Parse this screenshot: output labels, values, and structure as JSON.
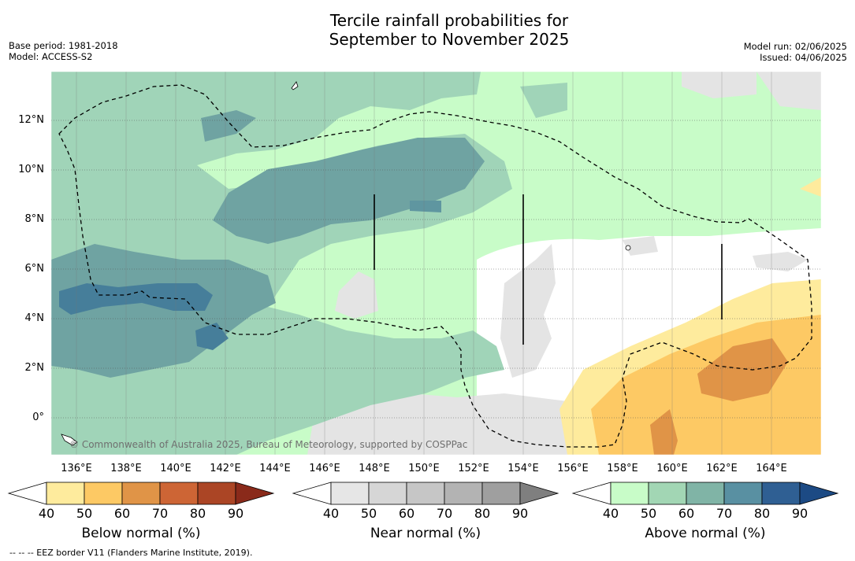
{
  "title_line1": "Tercile rainfall probabilities for",
  "title_line2": "September to November 2025",
  "base_period": "Base period: 1981-2018",
  "model": "Model: ACCESS-S2",
  "model_run": "Model run: 02/06/2025",
  "issued": "Issued: 04/06/2025",
  "credit": "© Commonwealth of Australia 2025, Bureau of Meteorology, supported by COSPPac",
  "footnote": "--  --  -- EEZ border V11 (Flanders Marine Institute, 2019).",
  "lat_labels": [
    "12°N",
    "10°N",
    "8°N",
    "6°N",
    "4°N",
    "2°N",
    "0°"
  ],
  "lon_labels": [
    "136°E",
    "138°E",
    "140°E",
    "142°E",
    "144°E",
    "146°E",
    "148°E",
    "150°E",
    "152°E",
    "154°E",
    "156°E",
    "158°E",
    "160°E",
    "162°E",
    "164°E"
  ],
  "colorbars": [
    {
      "label": "Below normal (%)",
      "ticks": [
        "40",
        "50",
        "60",
        "70",
        "80",
        "90"
      ],
      "colors": [
        "#ffffff",
        "#feeb9d",
        "#fdc964",
        "#e09447",
        "#cd6535",
        "#ab4525",
        "#8a2a1a"
      ]
    },
    {
      "label": "Near normal (%)",
      "ticks": [
        "40",
        "50",
        "60",
        "70",
        "80",
        "90"
      ],
      "colors": [
        "#ffffff",
        "#e6e6e6",
        "#d6d6d6",
        "#c6c6c6",
        "#b3b3b3",
        "#9f9f9f",
        "#7f7f7f"
      ]
    },
    {
      "label": "Above normal (%)",
      "ticks": [
        "40",
        "50",
        "60",
        "70",
        "80",
        "90"
      ],
      "colors": [
        "#ffffff",
        "#c8fcc8",
        "#a2d6b4",
        "#80b4a6",
        "#5990a2",
        "#2f5f93",
        "#1c4a84"
      ]
    }
  ]
}
